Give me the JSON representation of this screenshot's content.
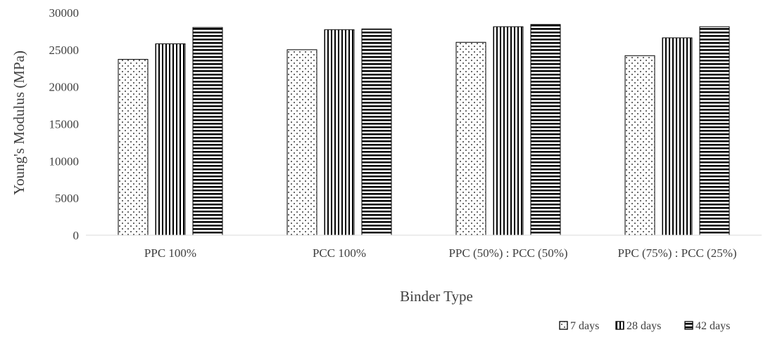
{
  "chart_data": {
    "type": "bar",
    "title": "",
    "xlabel": "Binder Type",
    "ylabel": "Young's Modulus (MPa)",
    "ylim": [
      0,
      30000
    ],
    "yticks": [
      "0",
      "5000",
      "10000",
      "15000",
      "20000",
      "25000",
      "30000"
    ],
    "categories": [
      "PPC 100%",
      "PCC 100%",
      "PPC (50%) : PCC (50%)",
      "PPC (75%) : PCC (25%)"
    ],
    "series": [
      {
        "name": "7 days",
        "pattern": "dots",
        "values": [
          23700,
          25000,
          26000,
          24200
        ]
      },
      {
        "name": "28 days",
        "pattern": "vertical-lines",
        "values": [
          25800,
          27700,
          28100,
          26600
        ]
      },
      {
        "name": "42 days",
        "pattern": "horizontal-lines",
        "values": [
          28000,
          27800,
          28400,
          28100
        ]
      }
    ],
    "grid": false,
    "legend_position": "bottom-right",
    "colors": {
      "stroke": "#000000",
      "text": "#404040",
      "axis": "#d9d9d9"
    }
  }
}
